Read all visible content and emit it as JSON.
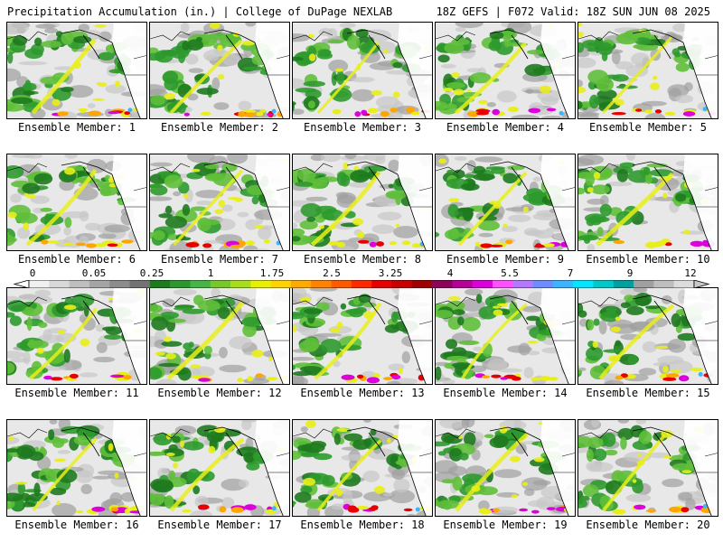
{
  "header": {
    "left_title": "Precipitation Accumulation (in.) | College of DuPage NEXLAB",
    "right_title": "18Z GEFS | F072 Valid: 18Z SUN JUN 08 2025"
  },
  "panels": [
    "Ensemble Member: 1",
    "Ensemble Member: 2",
    "Ensemble Member: 3",
    "Ensemble Member: 4",
    "Ensemble Member: 5",
    "Ensemble Member: 6",
    "Ensemble Member: 7",
    "Ensemble Member: 8",
    "Ensemble Member: 9",
    "Ensemble Member: 10",
    "Ensemble Member: 11",
    "Ensemble Member: 12",
    "Ensemble Member: 13",
    "Ensemble Member: 14",
    "Ensemble Member: 15",
    "Ensemble Member: 16",
    "Ensemble Member: 17",
    "Ensemble Member: 18",
    "Ensemble Member: 19",
    "Ensemble Member: 20"
  ],
  "colorbar": {
    "labels": [
      "0",
      "0.05",
      "0.25",
      "1",
      "1.75",
      "2.5",
      "3.25",
      "4",
      "5.5",
      "7",
      "9",
      "12"
    ],
    "colors": [
      "#f0f0f0",
      "#d8d8d8",
      "#bebebe",
      "#a5a5a5",
      "#8c8c8c",
      "#737373",
      "#1e7a1e",
      "#2d962d",
      "#46b446",
      "#78c82d",
      "#aadc1e",
      "#e6f000",
      "#ffd200",
      "#ffaa00",
      "#ff8200",
      "#ff5a00",
      "#ff2800",
      "#e60000",
      "#c80000",
      "#a00000",
      "#8c005a",
      "#b40096",
      "#dc00dc",
      "#ff50ff",
      "#b478ff",
      "#6e8cff",
      "#3cb4ff",
      "#00e6ff",
      "#00c8c8",
      "#00a0a0",
      "#a0a0a0",
      "#bebebe",
      "#dcdcdc"
    ]
  },
  "map_colors": {
    "ocean": "#e8e8e8",
    "light_gray": "#c8c8c8",
    "mid_gray": "#a0a0a0",
    "green": "#2e9a2e",
    "dark_green": "#1e7a1e",
    "light_green": "#5fbf3a",
    "yellow": "#e8ee1a",
    "orange": "#ffa500",
    "red": "#e60000",
    "magenta": "#dc00dc",
    "blue": "#3cb4ff",
    "land": "#ffffff",
    "border": "#000000"
  }
}
